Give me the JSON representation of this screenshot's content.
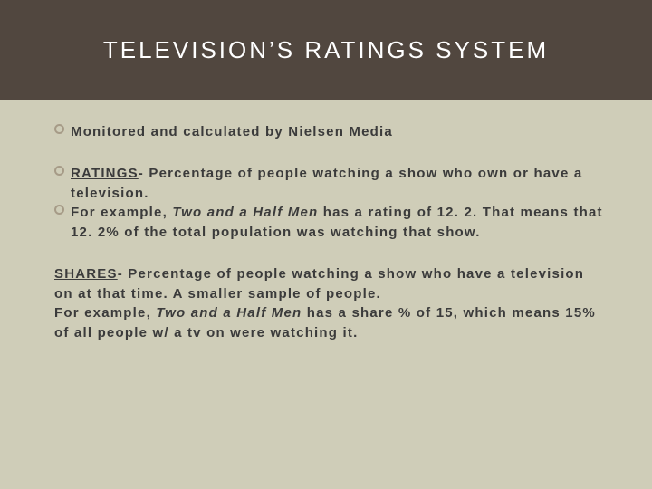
{
  "colors": {
    "header_bg": "#51473f",
    "header_text": "#ffffff",
    "body_bg": "#cfcdb8",
    "body_text": "#3b3b3b",
    "bullet_ring": "#a69b87"
  },
  "typography": {
    "title_fontsize": 26,
    "body_fontsize": 15
  },
  "title": "TELEVISION’S RATINGS SYSTEM",
  "bullets": {
    "b1": "Monitored and calculated by Nielsen Media",
    "b2_label": "RATINGS",
    "b2_rest": "-  Percentage of people watching a show who own or have a television.",
    "b3_a": "For example, ",
    "b3_show": "Two and a Half Men",
    "b3_b": " has a rating of 12. 2.  That means that 12. 2% of the total population was watching that show."
  },
  "shares": {
    "label": "SHARES",
    "rest1": "-  Percentage of people watching a show who have a television on at that time.  A smaller sample of people.",
    "line2a": "For example, ",
    "show": "Two and a Half Men",
    "line2b": " has a share % of 15, which means 15% of all people w/ a tv on were watching it."
  }
}
